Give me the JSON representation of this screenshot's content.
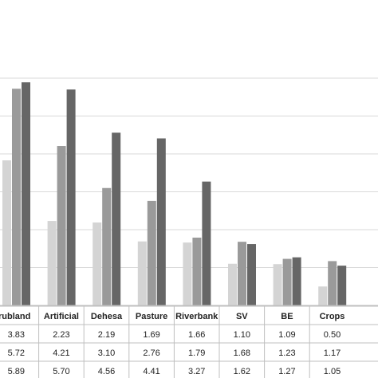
{
  "chart_data": {
    "type": "bar",
    "title": "",
    "xlabel": "",
    "ylabel": "",
    "ylim": [
      0,
      6
    ],
    "grid": true,
    "categories": [
      "Shrubland",
      "Artificial",
      "Dehesa",
      "Pasture",
      "Riverbank",
      "SV",
      "BE",
      "Crops"
    ],
    "visible_category_labels": [
      "rubland",
      "Artificial",
      "Dehesa",
      "Pasture",
      "Riverbank",
      "SV",
      "BE",
      "Crops"
    ],
    "series": [
      {
        "values": [
          3.83,
          2.23,
          2.19,
          1.69,
          1.66,
          1.1,
          1.09,
          0.5
        ],
        "color": "#d4d4d4"
      },
      {
        "values": [
          5.72,
          4.21,
          3.1,
          2.76,
          1.79,
          1.68,
          1.23,
          1.17
        ],
        "color": "#9a9a9a"
      },
      {
        "values": [
          5.89,
          5.7,
          4.56,
          4.41,
          3.27,
          1.62,
          1.27,
          1.05
        ],
        "color": "#666666"
      }
    ],
    "table_rows": [
      [
        "3.83",
        "2.23",
        "2.19",
        "1.69",
        "1.66",
        "1.10",
        "1.09",
        "0.50"
      ],
      [
        "5.72",
        "4.21",
        "3.10",
        "2.76",
        "1.79",
        "1.68",
        "1.23",
        "1.17"
      ],
      [
        "5.89",
        "5.70",
        "4.56",
        "4.41",
        "3.27",
        "1.62",
        "1.27",
        "1.05"
      ]
    ]
  }
}
